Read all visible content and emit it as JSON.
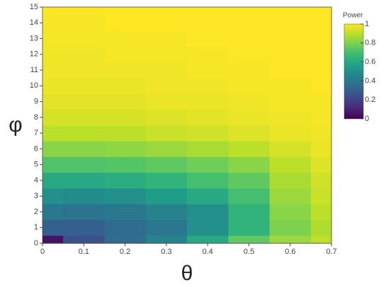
{
  "chart_data": {
    "type": "heatmap",
    "x": [
      0,
      0.1,
      0.2,
      0.3,
      0.4,
      0.5,
      0.6,
      0.7
    ],
    "y": [
      0,
      1,
      2,
      3,
      4,
      5,
      6,
      7,
      8,
      9,
      10,
      11,
      12,
      13,
      14,
      15
    ],
    "z": [
      [
        0.05,
        0.25,
        0.35,
        0.45,
        0.6,
        0.75,
        0.85,
        0.9
      ],
      [
        0.3,
        0.3,
        0.35,
        0.4,
        0.5,
        0.65,
        0.8,
        0.88
      ],
      [
        0.4,
        0.38,
        0.4,
        0.45,
        0.5,
        0.65,
        0.82,
        0.9
      ],
      [
        0.5,
        0.48,
        0.5,
        0.55,
        0.6,
        0.7,
        0.85,
        0.92
      ],
      [
        0.6,
        0.6,
        0.62,
        0.65,
        0.7,
        0.75,
        0.87,
        0.93
      ],
      [
        0.72,
        0.72,
        0.73,
        0.75,
        0.78,
        0.82,
        0.9,
        0.95
      ],
      [
        0.82,
        0.82,
        0.83,
        0.85,
        0.87,
        0.9,
        0.94,
        0.97
      ],
      [
        0.9,
        0.9,
        0.9,
        0.92,
        0.93,
        0.95,
        0.97,
        0.98
      ],
      [
        0.94,
        0.94,
        0.94,
        0.95,
        0.96,
        0.97,
        0.98,
        0.99
      ],
      [
        0.96,
        0.96,
        0.96,
        0.97,
        0.97,
        0.98,
        0.99,
        0.99
      ],
      [
        0.97,
        0.97,
        0.97,
        0.98,
        0.98,
        0.99,
        0.99,
        1
      ],
      [
        0.98,
        0.98,
        0.98,
        0.98,
        0.99,
        0.99,
        1,
        1
      ],
      [
        0.98,
        0.98,
        0.99,
        0.99,
        0.99,
        1,
        1,
        1
      ],
      [
        0.99,
        0.99,
        0.99,
        0.99,
        1,
        1,
        1,
        1
      ],
      [
        0.99,
        0.99,
        1,
        1,
        1,
        1,
        1,
        1
      ],
      [
        1,
        1,
        1,
        1,
        1,
        1,
        1,
        1
      ]
    ],
    "colorscale": [
      "#440154",
      "#482878",
      "#3e4989",
      "#31688e",
      "#26828e",
      "#1f9e89",
      "#35b779",
      "#6ece58",
      "#b5de2b",
      "#fde725"
    ],
    "xlabel": "θ",
    "ylabel": "φ",
    "xlim": [
      0,
      0.7
    ],
    "ylim": [
      0,
      15
    ],
    "xticks": [
      0,
      0.1,
      0.2,
      0.3,
      0.4,
      0.5,
      0.6,
      0.7
    ],
    "yticks": [
      0,
      1,
      2,
      3,
      4,
      5,
      6,
      7,
      8,
      9,
      10,
      11,
      12,
      13,
      14,
      15
    ],
    "colorbar_title": "Power",
    "zlim": [
      0,
      1
    ],
    "zticks": [
      0,
      0.2,
      0.4,
      0.6,
      0.8,
      1
    ]
  }
}
